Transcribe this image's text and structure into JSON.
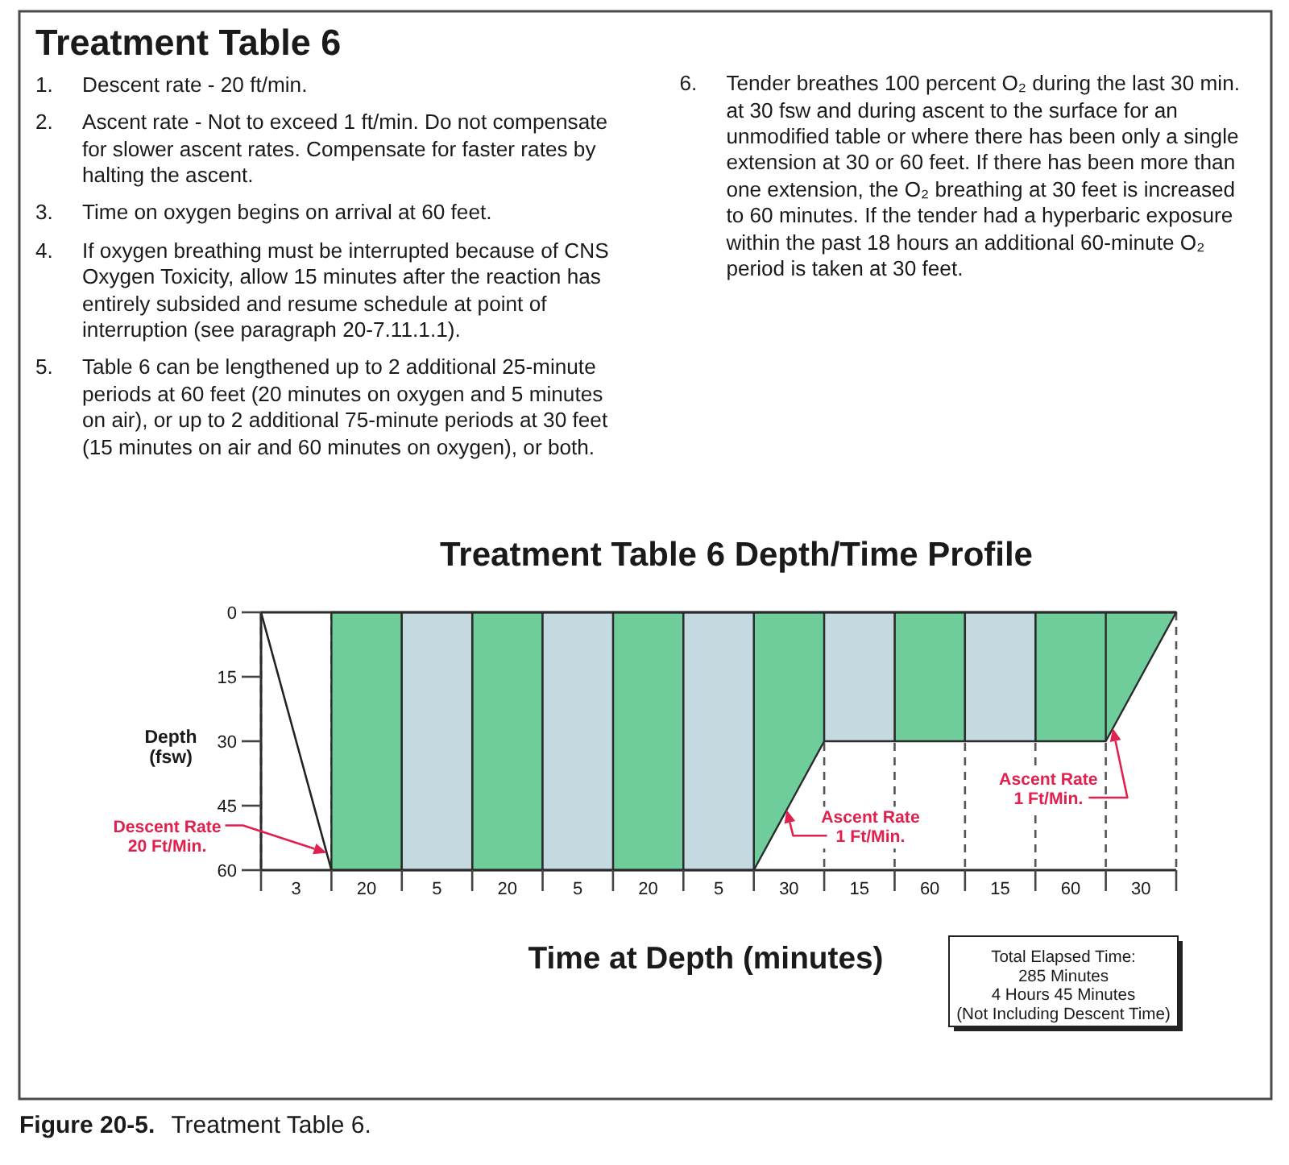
{
  "chart_data": {
    "type": "area",
    "title": "Treatment Table 6 Depth/Time Profile",
    "xlabel": "Time at Depth (minutes)",
    "ylabel": "Depth\n(fsw)",
    "categories": [
      null,
      "3",
      null,
      "20",
      null,
      "5",
      null,
      "20",
      null,
      "5",
      null,
      "20",
      null,
      "5",
      null,
      "30",
      null,
      "15",
      null,
      "60",
      null,
      "15",
      null,
      "60",
      null,
      "30",
      null
    ],
    "ylim": [
      60,
      0
    ],
    "yticks": [
      0,
      15,
      30,
      45,
      60
    ],
    "grid": "x",
    "series": [
      {
        "color": "#6ecd9b",
        "values": [
          null,
          null,
          60,
          60,
          60,
          null,
          60,
          60,
          60,
          null,
          60,
          60,
          60,
          null,
          60,
          45,
          30,
          null,
          30,
          30,
          30,
          null,
          30,
          30,
          30,
          15,
          0
        ]
      },
      {
        "color": "#c5d9e1",
        "values": [
          null,
          null,
          null,
          null,
          60,
          60,
          60,
          null,
          60,
          60,
          60,
          null,
          60,
          60,
          60,
          null,
          30,
          30,
          30,
          null,
          30,
          30,
          30,
          null,
          null,
          null,
          null
        ]
      },
      {
        "type": "line",
        "color": "#222222",
        "values": [
          0,
          30,
          60,
          null,
          null,
          null,
          null,
          null,
          null,
          null,
          null,
          null,
          null,
          null,
          null,
          null,
          null,
          null,
          null,
          null,
          null,
          null,
          null,
          null,
          null,
          null,
          null
        ]
      }
    ],
    "annotations": [
      "Treatment Table 6",
      "1. Descent rate - 20 ft/min.",
      "2. Ascent rate - Not to exceed 1 ft/min. Do not compensate for slower ascent rates. Compensate for faster rates by halting the ascent.",
      "3. Time on oxygen begins on arrival at 60 feet.",
      "4. If oxygen breathing must be interrupted because of CNS Oxygen Toxicity, allow 15 minutes after the reaction has entirely subsided and resume schedule at point of interruption (see paragraph 20-7.11.1.1).",
      "5. Table 6 can be lengthened up to 2 additional 25-minute periods at 60 feet (20 minutes on oxygen and 5 minutes on air), or up to 2 additional 75-minute periods at 30 feet (15 minutes on air and 60 minutes on oxygen), or both.",
      "6. Tender breathes 100 percent O₂ during the last 30 min. at 30 fsw and during ascent to the surface for an unmodified table or where there has been only a single extension at 30 or 60 feet. If there has been more than one extension, the O₂ breathing at 30 feet is increased to 60 minutes. If the tender had a hyperbaric exposure within the past 18 hours an additional 60-minute O₂ period is taken at 30 feet.",
      "Descent Rate\n20 Ft/Min.",
      "Ascent Rate\n1 Ft/Min.",
      "Ascent Rate\n1 Ft/Min.",
      "Total Elapsed Time:\n285 Minutes\n4 Hours 45 Minutes\n(Not Including Descent Time)",
      "Figure 20-5.",
      "Treatment Table 6."
    ]
  }
}
